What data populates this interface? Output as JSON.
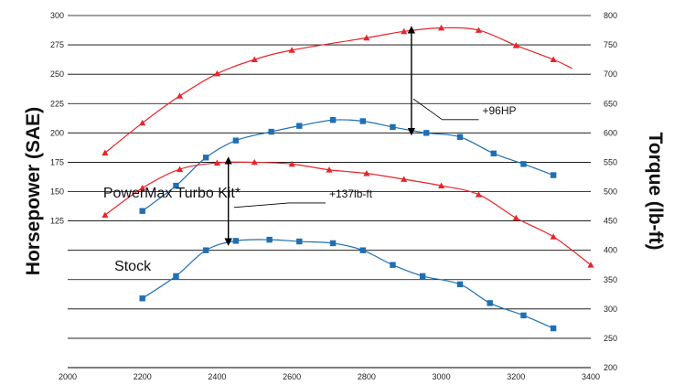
{
  "chart_data": {
    "type": "line",
    "x_axis": {
      "range": [
        2000,
        3400
      ],
      "ticks": [
        2000,
        2200,
        2400,
        2600,
        2800,
        3000,
        3200,
        3400
      ],
      "tick_labels": [
        "2000",
        "2200",
        "2400",
        "2600",
        "2800",
        "3000",
        "3200",
        "3400"
      ]
    },
    "y_left": {
      "label": "Horsepower (SAE)",
      "range": [
        0,
        300
      ],
      "tick_labels": [
        {
          "value": 300,
          "text": "300"
        },
        {
          "value": 275,
          "text": "275"
        },
        {
          "value": 250,
          "text": "250"
        },
        {
          "value": 225,
          "text": "225"
        },
        {
          "value": 200,
          "text": "200"
        },
        {
          "value": 175,
          "text": "175"
        },
        {
          "value": 150,
          "text": "150"
        },
        {
          "value": 125,
          "text": "125"
        }
      ]
    },
    "y_right": {
      "label": "Torque (lb-ft)",
      "range": [
        200,
        800
      ],
      "ticks": [
        200,
        250,
        300,
        350,
        400,
        450,
        500,
        550,
        600,
        650,
        700,
        750,
        800
      ],
      "tick_labels": [
        "200",
        "250",
        "300",
        "350",
        "400",
        "450",
        "500",
        "550",
        "600",
        "650",
        "700",
        "750",
        "800"
      ]
    },
    "grid": {
      "horizontal": true,
      "vertical": false
    },
    "series": [
      {
        "axis": "right",
        "color": "#e8242a",
        "marker": "triangle",
        "x": [
          2100,
          2200,
          2300,
          2400,
          2500,
          2600,
          2800,
          2900,
          3000,
          3100,
          3200,
          3300
        ],
        "y": [
          566,
          617,
          663,
          701,
          725,
          741,
          762,
          773,
          779,
          775,
          749,
          725
        ],
        "curve_end": [
          3350,
          710
        ]
      },
      {
        "axis": "right",
        "color": "#1f6fb5",
        "marker": "square",
        "x": [
          2200,
          2290,
          2370,
          2450,
          2545,
          2620,
          2710,
          2790,
          2870,
          2960,
          3050,
          3140,
          3220,
          3300
        ],
        "y": [
          467,
          510,
          558,
          587,
          602,
          612,
          622,
          620,
          610,
          600,
          593,
          565,
          547,
          528
        ]
      },
      {
        "axis": "right",
        "color": "#e8242a",
        "marker": "triangle",
        "x": [
          2100,
          2200,
          2300,
          2400,
          2500,
          2600,
          2700,
          2800,
          2900,
          3000,
          3100,
          3200,
          3300,
          3400
        ],
        "y": [
          460,
          506,
          538,
          549,
          550,
          547,
          537,
          531,
          521,
          510,
          495,
          455,
          423,
          375
        ]
      },
      {
        "axis": "right",
        "color": "#1f6fb5",
        "marker": "square",
        "x": [
          2200,
          2290,
          2370,
          2450,
          2540,
          2620,
          2710,
          2790,
          2870,
          2950,
          3050,
          3130,
          3220,
          3300
        ],
        "y": [
          318,
          356,
          400,
          416,
          418,
          415,
          412,
          400,
          375,
          356,
          342,
          310,
          289,
          267
        ]
      }
    ],
    "annotations": [
      {
        "text": "+96HP",
        "from": [
          2920,
          776
        ],
        "to": [
          2920,
          602
        ],
        "label_pos": [
          3110,
          632
        ],
        "leader_from": [
          2925,
          658
        ]
      },
      {
        "text": "+137lb-ft",
        "from": [
          2430,
          553
        ],
        "to": [
          2430,
          414
        ],
        "label_pos": [
          2700,
          490
        ],
        "leader_from": [
          2445,
          473
        ]
      },
      {
        "text": "PowerMax Turbo Kit*",
        "label_pos": [
          2095,
          490
        ]
      },
      {
        "text": "Stock",
        "label_pos": [
          2125,
          365
        ]
      }
    ]
  }
}
